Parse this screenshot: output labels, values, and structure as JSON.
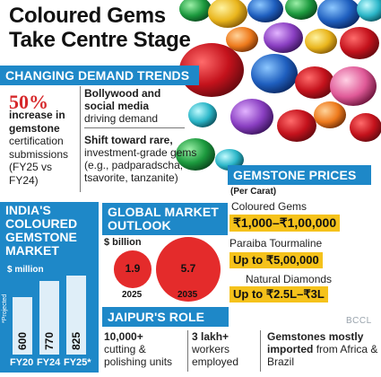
{
  "title": "Coloured Gems Take Centre Stage",
  "demand": {
    "header": "CHANGING DEMAND TRENDS",
    "stat": "50%",
    "stat_line1": "increase in",
    "stat_line2": "gemstone",
    "stat_rest": "certification submissions (FY25 vs FY24)",
    "trend1_bold": "Bollywood and social media",
    "trend1_rest": "driving demand",
    "trend2_bold": "Shift toward rare,",
    "trend2_rest": "investment-grade gems (e.g., padparadscha, tsavorite, tanzanite)"
  },
  "prices": {
    "header": "GEMSTONE PRICES",
    "unit": "(Per Carat)",
    "items": [
      {
        "label": "Coloured Gems",
        "value": "₹1,000–₹1,00,000"
      },
      {
        "label": "Paraiba Tourmaline",
        "value": "Up to ₹5,00,000"
      },
      {
        "label": "Natural Diamonds",
        "value": "Up to ₹2.5L–₹3L"
      }
    ]
  },
  "chart_data": [
    {
      "type": "bar",
      "title": "INDIA'S COLOURED GEMSTONE MARKET",
      "ylabel": "$ million",
      "categories": [
        "FY20",
        "FY24",
        "FY25*"
      ],
      "values": [
        600,
        770,
        825
      ],
      "footnote": "*Projected"
    },
    {
      "type": "bubble",
      "title": "GLOBAL MARKET OUTLOOK",
      "ylabel": "$ billion",
      "categories": [
        "2025",
        "2035"
      ],
      "values": [
        1.9,
        5.7
      ]
    }
  ],
  "jaipur": {
    "header": "JAIPUR'S ROLE",
    "f1_bold": "10,000+",
    "f1_rest": "cutting & polishing units",
    "f2_bold": "3 lakh+",
    "f2_rest": "workers employed",
    "f3_bold": "Gemstones mostly imported",
    "f3_rest": "from Africa & Brazil"
  },
  "credit": "BCCL",
  "colors": {
    "accent_blue": "#1e88c8",
    "highlight_yellow": "#f5c21b",
    "stat_red": "#d6282b",
    "bubble_red": "#e42b2b"
  }
}
